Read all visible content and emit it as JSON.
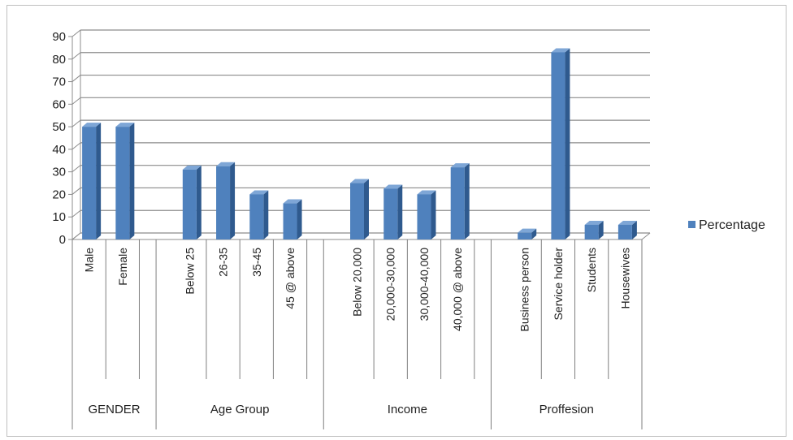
{
  "chart_data": {
    "type": "bar",
    "style": "3d-column",
    "categories": [
      "Male",
      "Female",
      "Below 25",
      "26-35",
      "35-45",
      "45 @ above",
      "Below 20,000",
      "20,000-30,000",
      "30,000-40,000",
      "40,000 @ above",
      "Business person",
      "Service holder",
      "Students",
      "Housewives"
    ],
    "groups": [
      {
        "label": "GENDER",
        "categories": [
          "Male",
          "Female"
        ]
      },
      {
        "label": "Age Group",
        "categories": [
          "Below 25",
          "26-35",
          "35-45",
          "45 @ above"
        ]
      },
      {
        "label": "Income",
        "categories": [
          "Below 20,000",
          "20,000-30,000",
          "30,000-40,000",
          "40,000 @ above"
        ]
      },
      {
        "label": "Proffesion",
        "categories": [
          "Business person",
          "Service holder",
          "Students",
          "Housewives"
        ]
      }
    ],
    "series": [
      {
        "name": "Percentage",
        "values": [
          50,
          50,
          31,
          32.5,
          20,
          16,
          25,
          22.5,
          20,
          32,
          3,
          83,
          6.5,
          6.5
        ]
      }
    ],
    "ylim": [
      0,
      90
    ],
    "yticks": [
      "0",
      "10",
      "20",
      "30",
      "40",
      "50",
      "60",
      "70",
      "80",
      "90"
    ],
    "grid": true,
    "legend": "right",
    "colors": {
      "bar_front": "#4f81bd",
      "bar_side": "#2f5a8e",
      "bar_top": "#7ea6d6",
      "grid": "#8c8c8c"
    }
  }
}
